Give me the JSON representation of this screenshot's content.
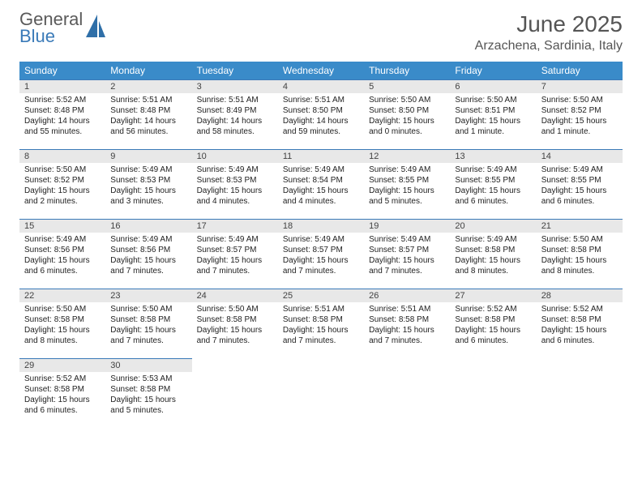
{
  "logo": {
    "top": "General",
    "bottom": "Blue",
    "glyph_fill": "#2f6fa8"
  },
  "title": "June 2025",
  "location": "Arzachena, Sardinia, Italy",
  "colors": {
    "header_bg": "#3a8bc9",
    "header_text": "#ffffff",
    "daynum_bg": "#e8e8e8",
    "daynum_border": "#3a7ab8",
    "body_text": "#222222"
  },
  "weekdays": [
    "Sunday",
    "Monday",
    "Tuesday",
    "Wednesday",
    "Thursday",
    "Friday",
    "Saturday"
  ],
  "days": [
    {
      "n": "1",
      "sr": "5:52 AM",
      "ss": "8:48 PM",
      "dl": "14 hours and 55 minutes."
    },
    {
      "n": "2",
      "sr": "5:51 AM",
      "ss": "8:48 PM",
      "dl": "14 hours and 56 minutes."
    },
    {
      "n": "3",
      "sr": "5:51 AM",
      "ss": "8:49 PM",
      "dl": "14 hours and 58 minutes."
    },
    {
      "n": "4",
      "sr": "5:51 AM",
      "ss": "8:50 PM",
      "dl": "14 hours and 59 minutes."
    },
    {
      "n": "5",
      "sr": "5:50 AM",
      "ss": "8:50 PM",
      "dl": "15 hours and 0 minutes."
    },
    {
      "n": "6",
      "sr": "5:50 AM",
      "ss": "8:51 PM",
      "dl": "15 hours and 1 minute."
    },
    {
      "n": "7",
      "sr": "5:50 AM",
      "ss": "8:52 PM",
      "dl": "15 hours and 1 minute."
    },
    {
      "n": "8",
      "sr": "5:50 AM",
      "ss": "8:52 PM",
      "dl": "15 hours and 2 minutes."
    },
    {
      "n": "9",
      "sr": "5:49 AM",
      "ss": "8:53 PM",
      "dl": "15 hours and 3 minutes."
    },
    {
      "n": "10",
      "sr": "5:49 AM",
      "ss": "8:53 PM",
      "dl": "15 hours and 4 minutes."
    },
    {
      "n": "11",
      "sr": "5:49 AM",
      "ss": "8:54 PM",
      "dl": "15 hours and 4 minutes."
    },
    {
      "n": "12",
      "sr": "5:49 AM",
      "ss": "8:55 PM",
      "dl": "15 hours and 5 minutes."
    },
    {
      "n": "13",
      "sr": "5:49 AM",
      "ss": "8:55 PM",
      "dl": "15 hours and 6 minutes."
    },
    {
      "n": "14",
      "sr": "5:49 AM",
      "ss": "8:55 PM",
      "dl": "15 hours and 6 minutes."
    },
    {
      "n": "15",
      "sr": "5:49 AM",
      "ss": "8:56 PM",
      "dl": "15 hours and 6 minutes."
    },
    {
      "n": "16",
      "sr": "5:49 AM",
      "ss": "8:56 PM",
      "dl": "15 hours and 7 minutes."
    },
    {
      "n": "17",
      "sr": "5:49 AM",
      "ss": "8:57 PM",
      "dl": "15 hours and 7 minutes."
    },
    {
      "n": "18",
      "sr": "5:49 AM",
      "ss": "8:57 PM",
      "dl": "15 hours and 7 minutes."
    },
    {
      "n": "19",
      "sr": "5:49 AM",
      "ss": "8:57 PM",
      "dl": "15 hours and 7 minutes."
    },
    {
      "n": "20",
      "sr": "5:49 AM",
      "ss": "8:58 PM",
      "dl": "15 hours and 8 minutes."
    },
    {
      "n": "21",
      "sr": "5:50 AM",
      "ss": "8:58 PM",
      "dl": "15 hours and 8 minutes."
    },
    {
      "n": "22",
      "sr": "5:50 AM",
      "ss": "8:58 PM",
      "dl": "15 hours and 8 minutes."
    },
    {
      "n": "23",
      "sr": "5:50 AM",
      "ss": "8:58 PM",
      "dl": "15 hours and 7 minutes."
    },
    {
      "n": "24",
      "sr": "5:50 AM",
      "ss": "8:58 PM",
      "dl": "15 hours and 7 minutes."
    },
    {
      "n": "25",
      "sr": "5:51 AM",
      "ss": "8:58 PM",
      "dl": "15 hours and 7 minutes."
    },
    {
      "n": "26",
      "sr": "5:51 AM",
      "ss": "8:58 PM",
      "dl": "15 hours and 7 minutes."
    },
    {
      "n": "27",
      "sr": "5:52 AM",
      "ss": "8:58 PM",
      "dl": "15 hours and 6 minutes."
    },
    {
      "n": "28",
      "sr": "5:52 AM",
      "ss": "8:58 PM",
      "dl": "15 hours and 6 minutes."
    },
    {
      "n": "29",
      "sr": "5:52 AM",
      "ss": "8:58 PM",
      "dl": "15 hours and 6 minutes."
    },
    {
      "n": "30",
      "sr": "5:53 AM",
      "ss": "8:58 PM",
      "dl": "15 hours and 5 minutes."
    }
  ],
  "labels": {
    "sunrise": "Sunrise: ",
    "sunset": "Sunset: ",
    "daylight": "Daylight: "
  },
  "layout": {
    "weeks": 5,
    "start_weekday": 0,
    "trailing_empty": 5
  }
}
